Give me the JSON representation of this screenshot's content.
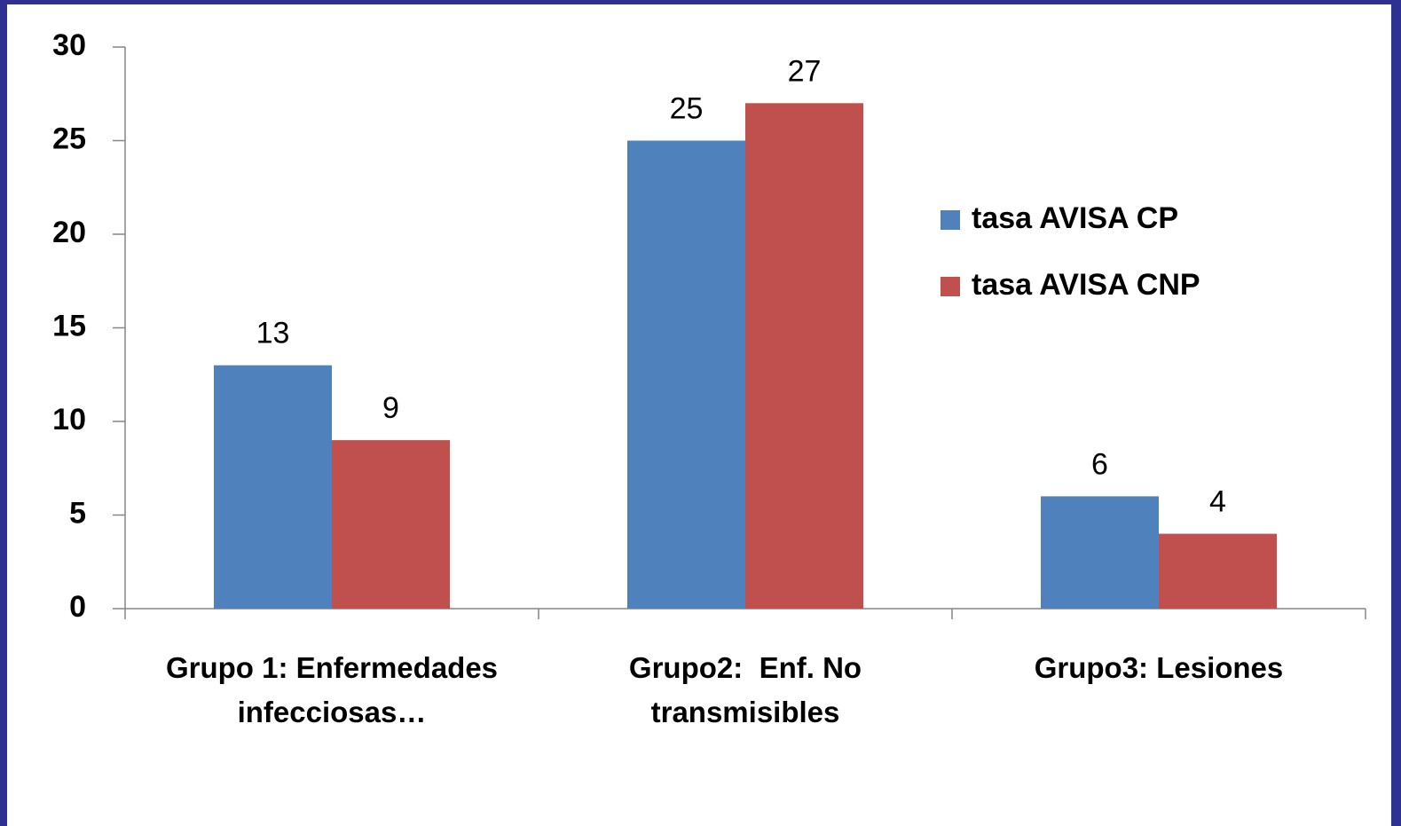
{
  "chart_data": {
    "type": "bar",
    "categories": [
      "Grupo 1: Enfermedades infecciosas…",
      "Grupo2:  Enf. No transmisibles",
      "Grupo3: Lesiones"
    ],
    "series": [
      {
        "name": "tasa AVISA CP",
        "color": "#4f81bd",
        "values": [
          13,
          25,
          6
        ]
      },
      {
        "name": "tasa AVISA CNP",
        "color": "#c0504d",
        "values": [
          9,
          27,
          4
        ]
      }
    ],
    "ylim": [
      0,
      30
    ],
    "yticks": [
      0,
      5,
      10,
      15,
      20,
      25,
      30
    ],
    "grid": false,
    "legend": "right"
  }
}
